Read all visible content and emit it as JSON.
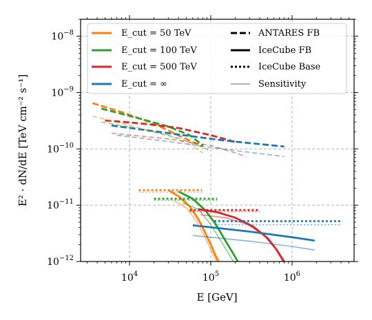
{
  "chart_data": {
    "type": "line",
    "x_scale": "log",
    "y_scale": "log",
    "xlim": [
      2500,
      5800000
    ],
    "ylim": [
      1e-12,
      2e-08
    ],
    "xlabel": "E  [GeV]",
    "ylabel": "E² · dN/dE  [TeV cm⁻² s⁻¹]",
    "xticks": [
      {
        "value": 10000,
        "base": "10",
        "exp": "4"
      },
      {
        "value": 100000,
        "base": "10",
        "exp": "5"
      },
      {
        "value": 1000000,
        "base": "10",
        "exp": "6"
      }
    ],
    "yticks": [
      {
        "value": 1e-12,
        "base": "10",
        "exp": "−12"
      },
      {
        "value": 1e-11,
        "base": "10",
        "exp": "−11"
      },
      {
        "value": 1e-10,
        "base": "10",
        "exp": "−10"
      },
      {
        "value": 1e-09,
        "base": "10",
        "exp": "−9"
      },
      {
        "value": 1e-08,
        "base": "10",
        "exp": "−8"
      }
    ],
    "grid": true,
    "legend_position": "top",
    "colors": {
      "cut50": "#ff7f0e",
      "cut100": "#2ca02c",
      "cut500": "#d62728",
      "cutinf": "#1f77b4",
      "sensitivity": "#7f7f7f"
    },
    "legend": {
      "cut50": "E_cut = 50 TeV",
      "cut100": "E_cut = 100 TeV",
      "cut500": "E_cut = 500 TeV",
      "cutinf": "E_cut = ∞",
      "antares": "ANTARES FB",
      "icecube_fb": "IceCube FB",
      "icecube_base": "IceCube Base",
      "sensitivity": "Sensitivity"
    },
    "series": [
      {
        "key": "cut50",
        "style": "dashed",
        "kind": "flux",
        "points": [
          [
            3500,
            6.5e-10
          ],
          [
            8000,
            4.5e-10
          ],
          [
            20000,
            2.8e-10
          ],
          [
            45000,
            1.6e-10
          ],
          [
            80000,
            1.1e-10
          ]
        ]
      },
      {
        "key": "cut100",
        "style": "dashed",
        "kind": "flux",
        "points": [
          [
            4500,
            5.2e-10
          ],
          [
            12000,
            3.6e-10
          ],
          [
            30000,
            2.5e-10
          ],
          [
            55000,
            1.75e-10
          ],
          [
            80000,
            1.15e-10
          ]
        ]
      },
      {
        "key": "cut500",
        "style": "dashed",
        "kind": "flux",
        "points": [
          [
            5000,
            3.2e-10
          ],
          [
            15000,
            2.8e-10
          ],
          [
            40000,
            2.35e-10
          ],
          [
            100000,
            1.75e-10
          ],
          [
            210000,
            1.3e-10
          ]
        ]
      },
      {
        "key": "cutinf",
        "style": "dashed",
        "kind": "flux",
        "points": [
          [
            6000,
            2.6e-10
          ],
          [
            30000,
            1.9e-10
          ],
          [
            150000,
            1.4e-10
          ],
          [
            800000,
            1.1e-10
          ]
        ]
      },
      {
        "key": "cut50",
        "style": "dashed",
        "kind": "sensitivity",
        "points": [
          [
            3500,
            3.8e-10
          ],
          [
            10000,
            2.6e-10
          ],
          [
            30000,
            1.75e-10
          ],
          [
            55000,
            1.2e-10
          ],
          [
            80000,
            8.5e-11
          ]
        ]
      },
      {
        "key": "cut100",
        "style": "dashed",
        "kind": "sensitivity",
        "points": [
          [
            4500,
            3e-10
          ],
          [
            15000,
            2.2e-10
          ],
          [
            40000,
            1.55e-10
          ],
          [
            75000,
            1.1e-10
          ],
          [
            95000,
            9.5e-11
          ]
        ]
      },
      {
        "key": "cut500",
        "style": "dashed",
        "kind": "sensitivity",
        "points": [
          [
            6000,
            1.9e-10
          ],
          [
            30000,
            1.5e-10
          ],
          [
            100000,
            1.15e-10
          ],
          [
            200000,
            8.5e-11
          ],
          [
            270000,
            7.3e-11
          ]
        ]
      },
      {
        "key": "cutinf",
        "style": "dashed",
        "kind": "sensitivity",
        "points": [
          [
            7000,
            1.75e-10
          ],
          [
            30000,
            1.35e-10
          ],
          [
            150000,
            9.8e-11
          ],
          [
            800000,
            7.3e-11
          ]
        ]
      },
      {
        "key": "cut50",
        "style": "solid",
        "kind": "flux",
        "points": [
          [
            30000,
            1.85e-11
          ],
          [
            40000,
            1.45e-11
          ],
          [
            55000,
            9.5e-12
          ],
          [
            70000,
            5.7e-12
          ],
          [
            85000,
            3.3e-12
          ],
          [
            100000,
            2e-12
          ],
          [
            115000,
            1.25e-12
          ],
          [
            125000,
            1e-12
          ]
        ]
      },
      {
        "key": "cut100",
        "style": "solid",
        "kind": "flux",
        "points": [
          [
            40000,
            1.75e-11
          ],
          [
            60000,
            1.3e-11
          ],
          [
            85000,
            8.2e-12
          ],
          [
            115000,
            4.6e-12
          ],
          [
            150000,
            2.4e-12
          ],
          [
            185000,
            1.45e-12
          ],
          [
            215000,
            1e-12
          ]
        ]
      },
      {
        "key": "cut500",
        "style": "solid",
        "kind": "flux",
        "points": [
          [
            70000,
            8.5e-12
          ],
          [
            120000,
            7.5e-12
          ],
          [
            200000,
            6e-12
          ],
          [
            330000,
            4.2e-12
          ],
          [
            500000,
            2.6e-12
          ],
          [
            650000,
            1.6e-12
          ],
          [
            780000,
            1.05e-12
          ],
          [
            800000,
            1e-12
          ]
        ]
      },
      {
        "key": "cutinf",
        "style": "solid",
        "kind": "flux",
        "points": [
          [
            60000,
            4.4e-12
          ],
          [
            300000,
            3.4e-12
          ],
          [
            1000000,
            2.7e-12
          ],
          [
            1900000,
            2.35e-12
          ]
        ]
      },
      {
        "key": "cut50",
        "style": "solid",
        "kind": "sensitivity",
        "points": [
          [
            35000,
            1.2e-11
          ],
          [
            50000,
            9e-12
          ],
          [
            65000,
            5.5e-12
          ],
          [
            80000,
            3.2e-12
          ],
          [
            95000,
            1.9e-12
          ],
          [
            110000,
            1.2e-12
          ],
          [
            120000,
            1e-12
          ]
        ]
      },
      {
        "key": "cut100",
        "style": "solid",
        "kind": "sensitivity",
        "points": [
          [
            45000,
            1.1e-11
          ],
          [
            70000,
            8.5e-12
          ],
          [
            95000,
            5e-12
          ],
          [
            125000,
            2.7e-12
          ],
          [
            160000,
            1.5e-12
          ],
          [
            190000,
            1e-12
          ]
        ]
      },
      {
        "key": "cut500",
        "style": "solid",
        "kind": "sensitivity",
        "points": [
          [
            75000,
            6.8e-12
          ],
          [
            150000,
            6e-12
          ],
          [
            280000,
            4.6e-12
          ],
          [
            450000,
            2.9e-12
          ],
          [
            620000,
            1.7e-12
          ],
          [
            740000,
            1.1e-12
          ],
          [
            760000,
            1e-12
          ]
        ]
      },
      {
        "key": "cutinf",
        "style": "solid",
        "kind": "sensitivity",
        "points": [
          [
            60000,
            2.9e-12
          ],
          [
            300000,
            2.3e-12
          ],
          [
            1000000,
            1.85e-12
          ],
          [
            1900000,
            1.6e-12
          ]
        ]
      },
      {
        "key": "cut50",
        "style": "dotted",
        "kind": "flux",
        "points": [
          [
            13000,
            1.85e-11
          ],
          [
            78000,
            1.85e-11
          ]
        ]
      },
      {
        "key": "cut100",
        "style": "dotted",
        "kind": "flux",
        "points": [
          [
            20000,
            1.3e-11
          ],
          [
            120000,
            1.3e-11
          ]
        ]
      },
      {
        "key": "cut500",
        "style": "dotted",
        "kind": "flux",
        "points": [
          [
            55000,
            8.2e-12
          ],
          [
            400000,
            8.2e-12
          ]
        ]
      },
      {
        "key": "cutinf",
        "style": "dotted",
        "kind": "flux",
        "points": [
          [
            110000,
            5.2e-12
          ],
          [
            4000000,
            5.2e-12
          ]
        ]
      },
      {
        "key": "cut50",
        "style": "dotted",
        "kind": "sensitivity",
        "points": [
          [
            13000,
            1.7e-11
          ],
          [
            78000,
            1.7e-11
          ]
        ]
      },
      {
        "key": "cut100",
        "style": "dotted",
        "kind": "sensitivity",
        "points": [
          [
            20000,
            1.22e-11
          ],
          [
            120000,
            1.22e-11
          ]
        ]
      },
      {
        "key": "cut500",
        "style": "dotted",
        "kind": "sensitivity",
        "points": [
          [
            55000,
            7.7e-12
          ],
          [
            400000,
            7.7e-12
          ]
        ]
      },
      {
        "key": "cutinf",
        "style": "dotted",
        "kind": "sensitivity",
        "points": [
          [
            110000,
            4.5e-12
          ],
          [
            4000000,
            4.5e-12
          ]
        ]
      }
    ]
  }
}
